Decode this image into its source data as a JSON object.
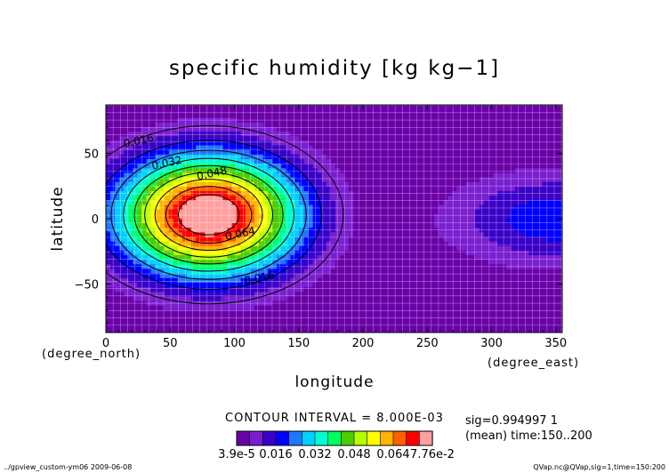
{
  "chart_data": {
    "type": "contour",
    "title": "specific humidity [kg kg−1]",
    "xlabel": "longitude",
    "ylabel": "latitude",
    "x_units": "(degree_east)",
    "y_units": "(degree_north)",
    "xlim": [
      0,
      355
    ],
    "ylim": [
      -87,
      87
    ],
    "x_ticks": [
      0,
      50,
      100,
      150,
      200,
      250,
      300,
      350
    ],
    "y_ticks": [
      -50,
      0,
      50
    ],
    "grid": true,
    "contour_interval_text": "CONTOUR INTERVAL = 8.000E-03",
    "contour_levels": [
      0.008,
      0.016,
      0.024,
      0.032,
      0.04,
      0.048,
      0.056,
      0.064,
      0.072
    ],
    "contour_labels": [
      {
        "text": "0.016",
        "lon": 26,
        "lat": 57
      },
      {
        "text": "0.032",
        "lon": 48,
        "lat": 40
      },
      {
        "text": "0.048",
        "lon": 83,
        "lat": 32
      },
      {
        "text": "0.064",
        "lon": 105,
        "lat": -14
      },
      {
        "text": "0.016",
        "lon": 120,
        "lat": -48
      }
    ],
    "field": {
      "center_lon": 80,
      "center_lat": 3,
      "peak_value": 0.0776,
      "secondary_region": "low humidity band near 260-355 east, lat -40..40"
    },
    "colorbar": {
      "colors": [
        "#6a00a8",
        "#7a1fd0",
        "#3a00c8",
        "#0000ff",
        "#1e78ff",
        "#00d0ff",
        "#00ffd0",
        "#00ff60",
        "#4ccd00",
        "#b4ff00",
        "#ffff00",
        "#ffb400",
        "#ff6000",
        "#ff0000",
        "#ffa0a0"
      ],
      "labels": [
        "3.9e-5",
        "0.016",
        "0.032",
        "0.048",
        "0.064",
        "7.76e-2"
      ]
    },
    "info_lines": [
      "sig=0.994997 1",
      "(mean) time:150..200"
    ],
    "footer_left": "../gpview_custom-ym06  2009-06-08",
    "footer_right": "QVap.nc@QVap,sig=1,time=150:200"
  }
}
